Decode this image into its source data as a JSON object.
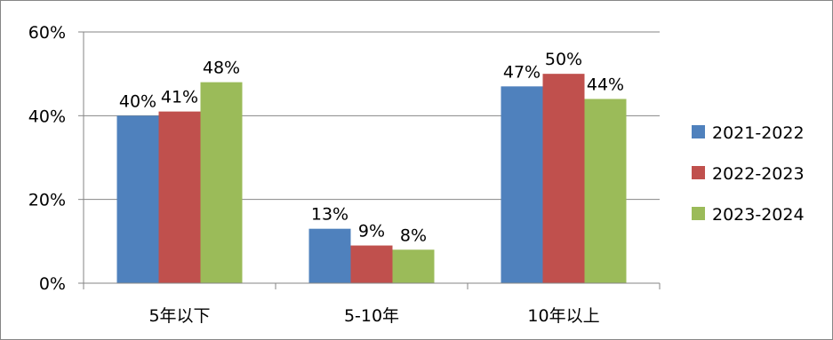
{
  "chart_data": {
    "type": "bar",
    "categories": [
      "5年以下",
      "5-10年",
      "10年以上"
    ],
    "series": [
      {
        "name": "2021-2022",
        "values": [
          40,
          13,
          47
        ],
        "color": "#4f81bd"
      },
      {
        "name": "2022-2023",
        "values": [
          41,
          9,
          50
        ],
        "color": "#c0504d"
      },
      {
        "name": "2023-2024",
        "values": [
          48,
          8,
          44
        ],
        "color": "#9bbb59"
      }
    ],
    "data_labels": [
      [
        "40%",
        "13%",
        "47%"
      ],
      [
        "41%",
        "9%",
        "50%"
      ],
      [
        "48%",
        "8%",
        "44%"
      ]
    ],
    "y_ticks": [
      {
        "value": 0,
        "label": "0%"
      },
      {
        "value": 20,
        "label": "20%"
      },
      {
        "value": 40,
        "label": "40%"
      },
      {
        "value": 60,
        "label": "60%"
      }
    ],
    "ylim": [
      0,
      60
    ],
    "title": "",
    "xlabel": "",
    "ylabel": "",
    "grid": true,
    "legend_position": "right"
  }
}
